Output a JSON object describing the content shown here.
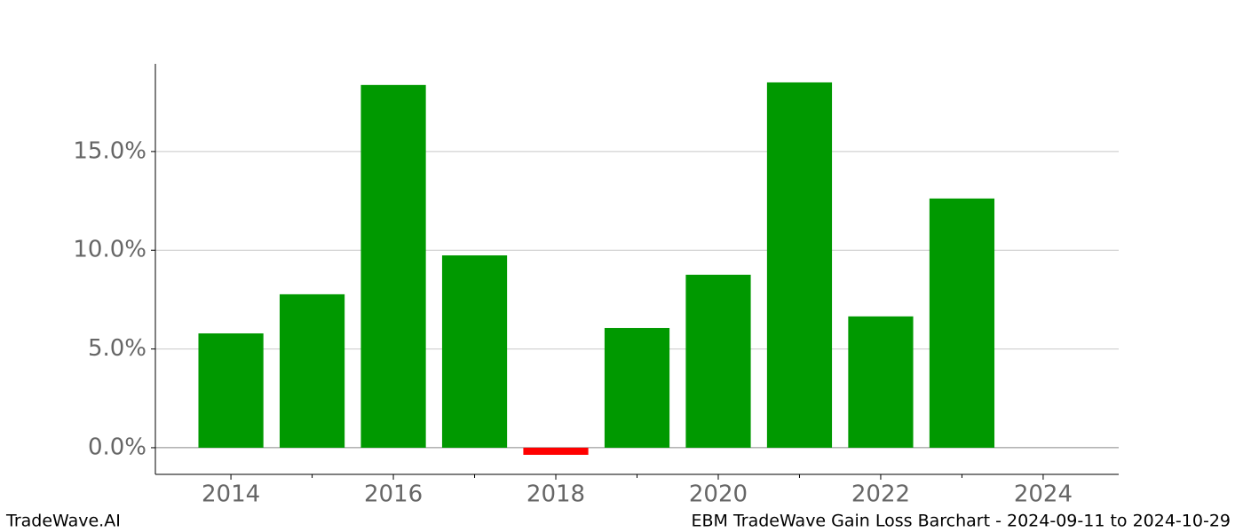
{
  "chart_data": {
    "type": "bar",
    "x": [
      2014,
      2015,
      2016,
      2017,
      2018,
      2019,
      2020,
      2021,
      2022,
      2023
    ],
    "values": [
      5.79,
      7.77,
      18.37,
      9.74,
      -0.36,
      6.06,
      8.76,
      18.5,
      6.65,
      12.62
    ],
    "colors": [
      "#009900",
      "#009900",
      "#009900",
      "#009900",
      "#ff0000",
      "#009900",
      "#009900",
      "#009900",
      "#009900",
      "#009900"
    ],
    "xlim": [
      2013.07,
      2024.93
    ],
    "xticks": [
      2014,
      2016,
      2018,
      2020,
      2022,
      2024
    ],
    "xticks_minor": [
      2015,
      2017,
      2019,
      2021,
      2023
    ],
    "ylim": [
      -1.35,
      19.44
    ],
    "yticks": [
      {
        "value": 0,
        "label": "0.0%"
      },
      {
        "value": 5,
        "label": "5.0%"
      },
      {
        "value": 10,
        "label": "10.0%"
      },
      {
        "value": 15,
        "label": "15.0%"
      }
    ],
    "grid": true,
    "footer_left": "TradeWave.AI",
    "footer_right": "EBM TradeWave Gain Loss Barchart - 2024-09-11 to 2024-10-29"
  }
}
